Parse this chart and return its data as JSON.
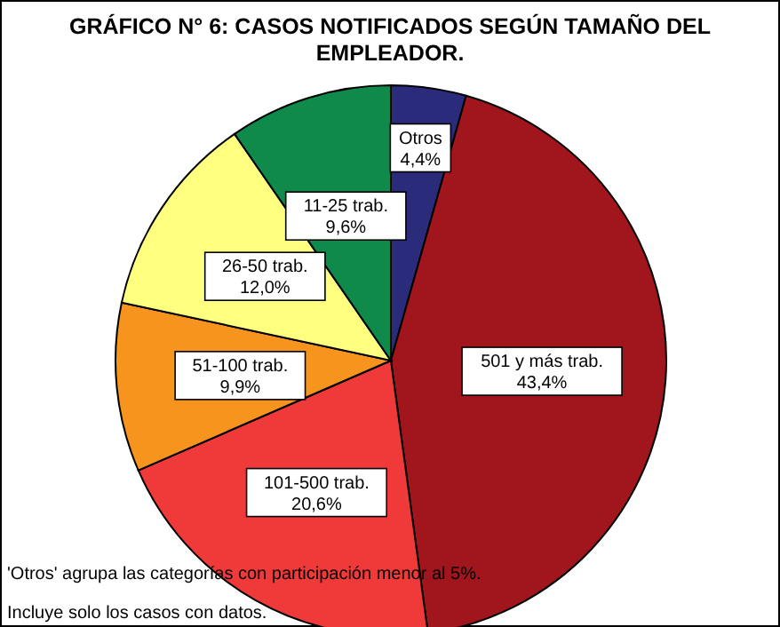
{
  "chart_data": {
    "type": "pie",
    "title": "GRÁFICO N° 6: CASOS NOTIFICADOS SEGÚN TAMAÑO DEL EMPLEADOR.",
    "categories": [
      "Otros",
      "501 y más trab.",
      "101-500 trab.",
      "51-100 trab.",
      "26-50 trab.",
      "11-25 trab."
    ],
    "values": [
      4.4,
      43.4,
      20.6,
      9.9,
      12.0,
      9.6
    ],
    "value_labels": [
      "4,4%",
      "43,4%",
      "20,6%",
      "9,9%",
      "12,0%",
      "9,6%"
    ],
    "colors": [
      "#2b2b7b",
      "#a1161d",
      "#f03a3a",
      "#f7941d",
      "#ffff80",
      "#108a4b"
    ],
    "annotations": [
      "'Otros' agrupa las categorías con participación menor al 5%.",
      "Incluye solo los casos con datos."
    ]
  }
}
